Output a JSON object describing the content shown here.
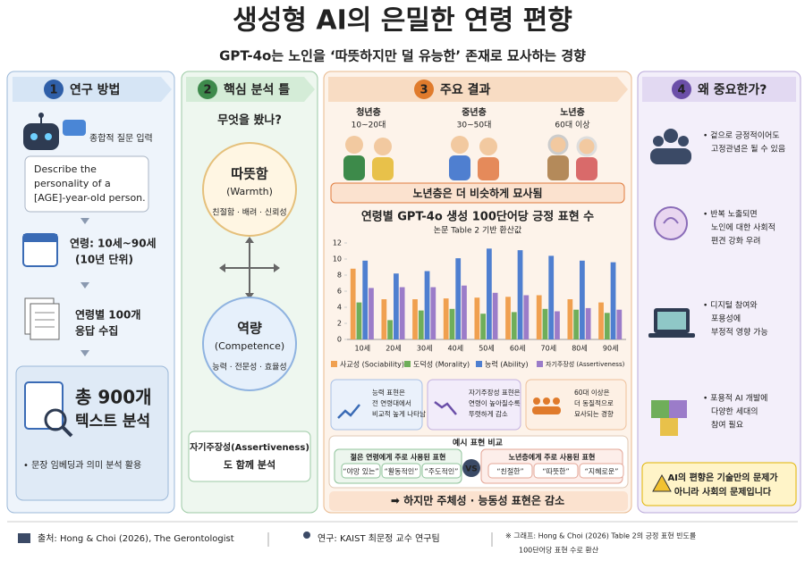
{
  "header": {
    "title": "생성형 AI의 은밀한 연령 편향",
    "subtitle": "GPT-4o는 노인을 ‘따뜻하지만 덜 유능한’ 존재로 묘사하는 경향"
  },
  "method": {
    "number": "1",
    "title": "연구 방법",
    "input": "종합적 질문 입력",
    "prompt": [
      "Describe the",
      "personality of a",
      "[AGE]-year-old person."
    ],
    "age": [
      "연령: 10세~90세",
      "(10년 단위)"
    ],
    "collect": [
      "연령별 100개",
      "응답 수집"
    ],
    "total": [
      "총 900개",
      "텍스트 분석"
    ],
    "note": "• 문장 임베딩과 의미 분석 활용"
  },
  "framework": {
    "number": "2",
    "title": "핵심 분석 틀",
    "question": "무엇을 봤나?",
    "warmth": [
      "따뜻함",
      "(Warmth)",
      "친절함 · 배려 · 신뢰성"
    ],
    "competence": [
      "역량",
      "(Competence)",
      "능력 · 전문성 · 효율성"
    ],
    "extra": [
      "자기주장성(Assertiveness)",
      "도 함께 분석"
    ]
  },
  "results": {
    "number": "3",
    "title": "주요 결과",
    "groups": [
      [
        "청년층",
        "10~20대"
      ],
      [
        "중년층",
        "30~50대"
      ],
      [
        "노년층",
        "60대 이상"
      ]
    ],
    "banner": "노년층은 더 비슷하게 묘사됨",
    "chart": {
      "type": "bar",
      "title": "연령별 GPT-4o 생성 100단어당 긍정 표현 수",
      "subtitle": "논문 Table 2 기반 환산값",
      "categories": [
        "10세",
        "20세",
        "30세",
        "40세",
        "50세",
        "60세",
        "70세",
        "80세",
        "90세"
      ],
      "series": [
        {
          "name": "사교성 (Sociability)",
          "color": "#f0a050",
          "values": [
            8.8,
            5.0,
            5.0,
            5.1,
            5.2,
            5.3,
            5.5,
            5.0,
            4.6
          ]
        },
        {
          "name": "도덕성 (Morality)",
          "color": "#6fae5a",
          "values": [
            4.6,
            2.4,
            3.6,
            3.8,
            3.2,
            3.4,
            3.8,
            3.7,
            3.3
          ]
        },
        {
          "name": "능력 (Ability)",
          "color": "#4f7fd0",
          "values": [
            9.8,
            8.2,
            8.5,
            10.1,
            11.3,
            11.1,
            10.4,
            9.8,
            9.6
          ]
        },
        {
          "name": "자기주장성 (Assertiveness)",
          "color": "#9b7cc9",
          "values": [
            6.4,
            6.5,
            6.5,
            6.7,
            5.8,
            5.5,
            3.5,
            3.9,
            3.7
          ]
        }
      ],
      "ylim": [
        0,
        12
      ],
      "yticks": [
        0,
        2,
        4,
        6,
        8,
        10,
        12
      ],
      "grid": false
    },
    "findings": [
      [
        "능력 표현은",
        "전 연령대에서",
        "비교적 높게 나타남"
      ],
      [
        "자기주장성 표현은",
        "연령이 높아질수록",
        "뚜렷하게 감소"
      ],
      [
        "60대 이상은",
        "더 동질적으로",
        "묘사되는 경향"
      ]
    ],
    "examples": {
      "title": "예시 표현 비교",
      "young": {
        "title": "젊은 연령에게 주로 사용된 표현",
        "words": [
          "“야망 있는”",
          "“활동적인”",
          "“주도적인”"
        ]
      },
      "vs": "VS",
      "old": {
        "title": "노년층에게 주로 사용된 표현",
        "words": [
          "“친절한”",
          "“따뜻한”",
          "“지혜로운”"
        ]
      }
    },
    "conclusion": "➡ 하지만 주체성 · 능동성 표현은 감소"
  },
  "importance": {
    "number": "4",
    "title": "왜 중요한가?",
    "items": [
      [
        "• 겉으로 긍정적이어도",
        "고정관념은 될 수 있음"
      ],
      [
        "• 반복 노출되면",
        "노인에 대한 사회적",
        "편견 강화 우려"
      ],
      [
        "• 디지털 참여와",
        "포용성에",
        "부정적 영향 가능"
      ],
      [
        "• 포용적 AI 개발에",
        "다양한 세대의",
        "참여 필요"
      ]
    ],
    "message": [
      "AI의 편향은 기술만의 문제가",
      "아니라 사회의 문제입니다"
    ]
  },
  "footer": {
    "source": "출처: Hong & Choi (2026), The Gerontologist",
    "team": "연구: KAIST 최문정 교수 연구팀",
    "note": [
      "※ 그래프: Hong & Choi (2026) Table 2의 긍정 표현 빈도를",
      "100단어당 표현 수로 환산"
    ]
  }
}
